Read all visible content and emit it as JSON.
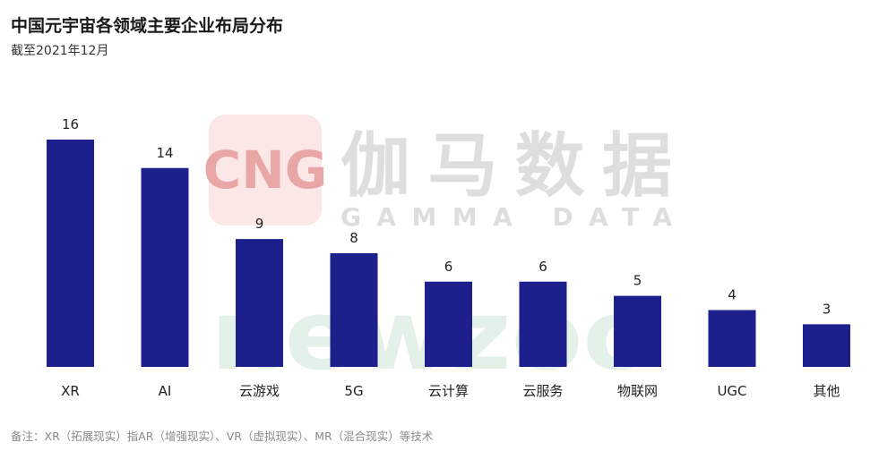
{
  "title": "中国元宇宙各领域主要企业布局分布",
  "subtitle": "截至2021年12月",
  "footnote": "备注：XR（拓展现实）指AR（增强现实）、VR（虚拟现实）、MR（混合现实）等技术",
  "watermarks": {
    "logo": "CNG",
    "brand": "伽马数据",
    "brand_en": "GAMMA DATA",
    "bg_brand": "newzoo"
  },
  "colors": {
    "bar": "#1c1f8c",
    "watermark_red": "#e9a6a6",
    "watermark_gray": "#dedede",
    "watermark_green": "#e3f1e8"
  },
  "chart_data": {
    "type": "bar",
    "title": "中国元宇宙各领域主要企业布局分布",
    "categories": [
      "XR",
      "AI",
      "云游戏",
      "5G",
      "云计算",
      "云服务",
      "物联网",
      "UGC",
      "其他"
    ],
    "values": [
      16,
      14,
      9,
      8,
      6,
      6,
      5,
      4,
      3
    ],
    "ylim": [
      0,
      16
    ],
    "grid": false,
    "legend": "none"
  }
}
